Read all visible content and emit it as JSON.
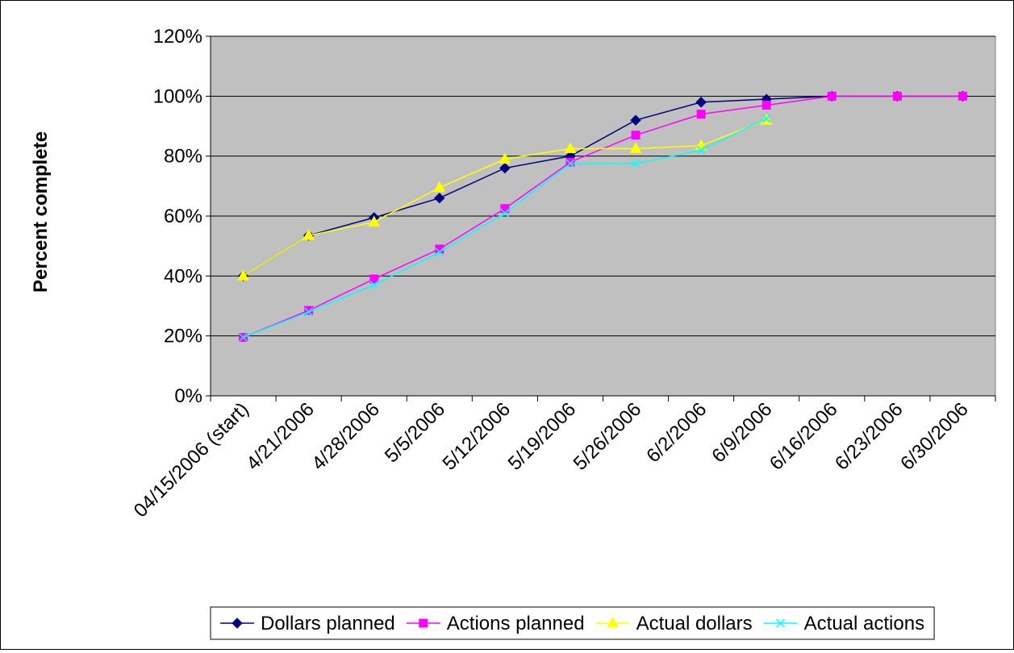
{
  "chart_data": {
    "type": "line",
    "title": "",
    "xlabel": "",
    "ylabel": "Percent complete",
    "ylim": [
      0,
      1.2
    ],
    "y_ticks": [
      0,
      0.2,
      0.4,
      0.6,
      0.8,
      1.0,
      1.2
    ],
    "y_tick_labels": [
      "0%",
      "20%",
      "40%",
      "60%",
      "80%",
      "100%",
      "120%"
    ],
    "grid": true,
    "plot_background": "#c0c0c0",
    "legend_position": "bottom",
    "categories": [
      "04/15/2006 (start)",
      "4/21/2006",
      "4/28/2006",
      "5/5/2006",
      "5/12/2006",
      "5/19/2006",
      "5/26/2006",
      "6/2/2006",
      "6/9/2006",
      "6/16/2006",
      "6/23/2006",
      "6/30/2006"
    ],
    "series": [
      {
        "name": "Dollars planned",
        "color": "#000080",
        "marker": "diamond",
        "values": [
          0.4,
          0.535,
          0.595,
          0.66,
          0.76,
          0.8,
          0.92,
          0.98,
          0.99,
          1.0,
          1.0,
          1.0
        ]
      },
      {
        "name": "Actions planned",
        "color": "#ff00ff",
        "marker": "square",
        "values": [
          0.195,
          0.285,
          0.39,
          0.49,
          0.625,
          0.78,
          0.87,
          0.94,
          0.97,
          1.0,
          1.0,
          1.0
        ]
      },
      {
        "name": "Actual dollars",
        "color": "#ffff00",
        "marker": "triangle",
        "values": [
          0.4,
          0.535,
          0.58,
          0.695,
          0.79,
          0.825,
          0.825,
          0.835,
          0.92,
          null,
          null,
          null
        ]
      },
      {
        "name": "Actual actions",
        "color": "#00ffff",
        "marker": "x",
        "values": [
          0.195,
          0.28,
          0.37,
          0.48,
          0.61,
          0.775,
          0.775,
          0.82,
          0.925,
          null,
          null,
          null
        ]
      }
    ]
  }
}
